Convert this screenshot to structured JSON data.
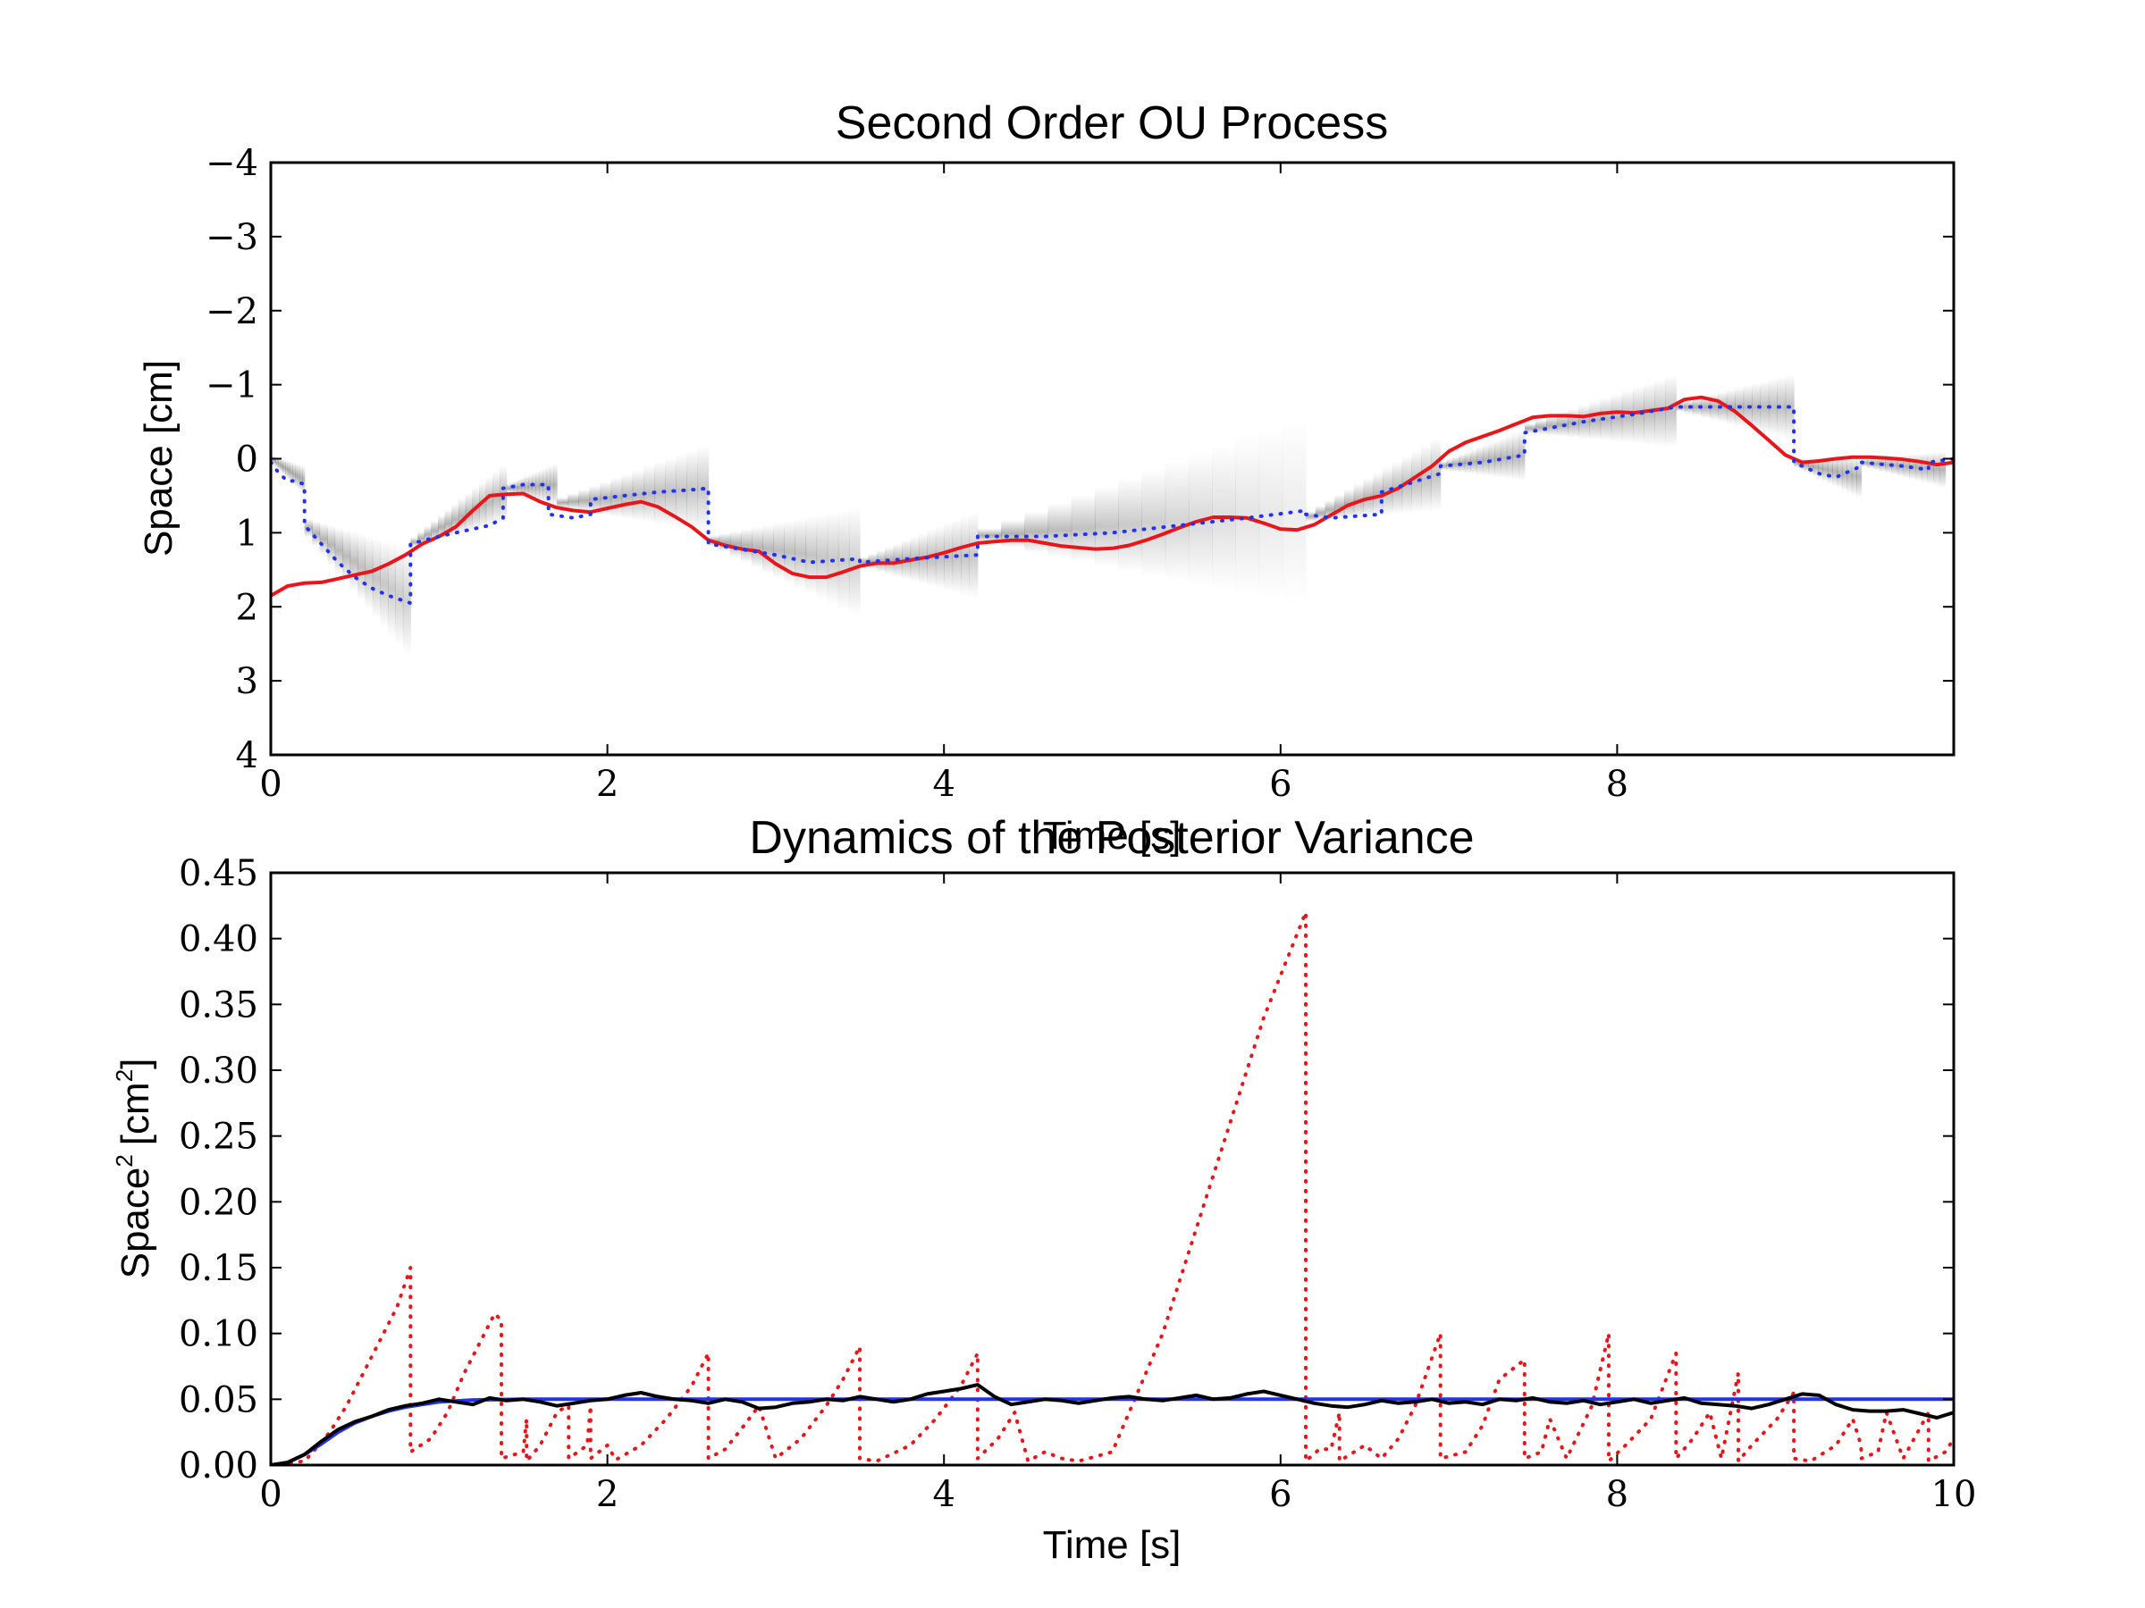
{
  "chart_data": [
    {
      "type": "line",
      "title": "Second Order OU Process",
      "xlabel": "Time [s]",
      "ylabel": "Space [cm]",
      "xlim": [
        0,
        10
      ],
      "ylim": [
        4,
        -4
      ],
      "y_axis_inverted": true,
      "xticks": [
        "0",
        "2",
        "4",
        "6",
        "8"
      ],
      "xtick_values": [
        0,
        2,
        4,
        6,
        8
      ],
      "yticks": [
        "−4",
        "−3",
        "−2",
        "−1",
        "0",
        "1",
        "2",
        "3",
        "4"
      ],
      "ytick_values": [
        -4,
        -3,
        -2,
        -1,
        0,
        1,
        2,
        3,
        4
      ],
      "grid": false,
      "legend": "none",
      "shaded_posterior": [
        {
          "x": [
            0.0,
            0.2
          ],
          "y": [
            0.0,
            0.3
          ],
          "spread": [
            0.05,
            0.2
          ]
        },
        {
          "x": [
            0.2,
            0.83
          ],
          "y": [
            0.9,
            1.95
          ],
          "spread": [
            0.1,
            0.75
          ]
        },
        {
          "x": [
            0.83,
            1.4
          ],
          "y": [
            1.15,
            0.45
          ],
          "spread": [
            0.05,
            0.4
          ]
        },
        {
          "x": [
            1.4,
            1.7
          ],
          "y": [
            0.4,
            0.35
          ],
          "spread": [
            0.05,
            0.3
          ]
        },
        {
          "x": [
            1.7,
            2.6
          ],
          "y": [
            0.6,
            0.4
          ],
          "spread": [
            0.05,
            0.6
          ]
        },
        {
          "x": [
            2.6,
            3.5
          ],
          "y": [
            1.1,
            1.4
          ],
          "spread": [
            0.05,
            0.75
          ]
        },
        {
          "x": [
            3.5,
            4.2
          ],
          "y": [
            1.4,
            1.3
          ],
          "spread": [
            0.05,
            0.6
          ]
        },
        {
          "x": [
            4.2,
            6.15
          ],
          "y": [
            1.05,
            0.7
          ],
          "spread": [
            0.05,
            1.3
          ]
        },
        {
          "x": [
            6.15,
            6.95
          ],
          "y": [
            0.8,
            0.2
          ],
          "spread": [
            0.05,
            0.5
          ]
        },
        {
          "x": [
            6.95,
            7.45
          ],
          "y": [
            0.1,
            -0.05
          ],
          "spread": [
            0.05,
            0.35
          ]
        },
        {
          "x": [
            7.45,
            8.35
          ],
          "y": [
            -0.4,
            -0.65
          ],
          "spread": [
            0.05,
            0.5
          ]
        },
        {
          "x": [
            8.35,
            9.05
          ],
          "y": [
            -0.7,
            -0.7
          ],
          "spread": [
            0.05,
            0.45
          ]
        },
        {
          "x": [
            9.05,
            9.45
          ],
          "y": [
            0.05,
            0.25
          ],
          "spread": [
            0.05,
            0.3
          ]
        },
        {
          "x": [
            9.45,
            9.95
          ],
          "y": [
            0.05,
            0.15
          ],
          "spread": [
            0.05,
            0.25
          ]
        }
      ],
      "series": [
        {
          "color": "#e8161b",
          "style": "solid",
          "x": [
            0,
            0.1,
            0.2,
            0.3,
            0.4,
            0.5,
            0.6,
            0.7,
            0.8,
            0.9,
            1.0,
            1.1,
            1.2,
            1.3,
            1.4,
            1.5,
            1.6,
            1.7,
            1.8,
            1.9,
            2.0,
            2.1,
            2.2,
            2.3,
            2.4,
            2.5,
            2.6,
            2.7,
            2.8,
            2.9,
            3.0,
            3.1,
            3.2,
            3.3,
            3.4,
            3.5,
            3.6,
            3.7,
            3.8,
            3.9,
            4.0,
            4.1,
            4.2,
            4.3,
            4.4,
            4.5,
            4.6,
            4.7,
            4.8,
            4.9,
            5.0,
            5.1,
            5.2,
            5.3,
            5.4,
            5.5,
            5.6,
            5.7,
            5.8,
            5.9,
            6.0,
            6.1,
            6.2,
            6.3,
            6.4,
            6.5,
            6.6,
            6.7,
            6.8,
            6.9,
            7.0,
            7.1,
            7.2,
            7.3,
            7.4,
            7.5,
            7.6,
            7.7,
            7.8,
            7.9,
            8.0,
            8.1,
            8.2,
            8.3,
            8.4,
            8.5,
            8.6,
            8.7,
            8.8,
            8.9,
            9.0,
            9.1,
            9.2,
            9.3,
            9.4,
            9.5,
            9.6,
            9.7,
            9.8,
            9.9,
            10.0
          ],
          "y": [
            1.85,
            1.72,
            1.68,
            1.67,
            1.62,
            1.57,
            1.52,
            1.42,
            1.3,
            1.15,
            1.05,
            0.92,
            0.7,
            0.5,
            0.48,
            0.47,
            0.58,
            0.66,
            0.7,
            0.72,
            0.67,
            0.62,
            0.58,
            0.65,
            0.78,
            0.92,
            1.1,
            1.17,
            1.22,
            1.25,
            1.42,
            1.55,
            1.6,
            1.6,
            1.53,
            1.45,
            1.41,
            1.41,
            1.37,
            1.33,
            1.27,
            1.2,
            1.14,
            1.12,
            1.1,
            1.1,
            1.14,
            1.18,
            1.2,
            1.22,
            1.21,
            1.17,
            1.1,
            1.02,
            0.93,
            0.85,
            0.79,
            0.79,
            0.8,
            0.87,
            0.95,
            0.96,
            0.89,
            0.76,
            0.63,
            0.55,
            0.5,
            0.4,
            0.25,
            0.1,
            -0.1,
            -0.22,
            -0.3,
            -0.38,
            -0.47,
            -0.56,
            -0.58,
            -0.58,
            -0.57,
            -0.61,
            -0.63,
            -0.62,
            -0.65,
            -0.68,
            -0.8,
            -0.83,
            -0.78,
            -0.64,
            -0.45,
            -0.25,
            -0.05,
            0.05,
            0.03,
            0.0,
            -0.02,
            -0.02,
            -0.01,
            0.01,
            0.04,
            0.08,
            0.05
          ]
        },
        {
          "color": "#2233ee",
          "style": "dotted",
          "x": [
            0,
            0.05,
            0.1,
            0.15,
            0.2,
            0.2,
            0.3,
            0.4,
            0.5,
            0.6,
            0.7,
            0.83,
            0.83,
            1.0,
            1.2,
            1.3,
            1.38,
            1.38,
            1.5,
            1.65,
            1.65,
            1.8,
            1.9,
            1.9,
            2.1,
            2.3,
            2.5,
            2.6,
            2.6,
            3.0,
            3.2,
            3.5,
            3.5,
            3.8,
            4.2,
            4.2,
            4.6,
            5.0,
            5.4,
            5.8,
            6.15,
            6.15,
            6.3,
            6.6,
            6.6,
            6.95,
            6.95,
            7.2,
            7.45,
            7.45,
            7.8,
            8.1,
            8.35,
            8.35,
            8.7,
            9.05,
            9.05,
            9.2,
            9.3,
            9.45,
            9.45,
            9.7,
            9.85,
            9.85,
            10.0
          ],
          "y": [
            0.05,
            0.2,
            0.3,
            0.3,
            0.35,
            0.9,
            1.15,
            1.4,
            1.6,
            1.75,
            1.85,
            1.95,
            1.15,
            1.05,
            0.95,
            0.9,
            0.8,
            0.4,
            0.35,
            0.35,
            0.75,
            0.8,
            0.75,
            0.55,
            0.5,
            0.45,
            0.42,
            0.4,
            1.15,
            1.3,
            1.4,
            1.35,
            1.4,
            1.35,
            1.3,
            1.05,
            1.05,
            1.0,
            0.9,
            0.8,
            0.7,
            0.75,
            0.8,
            0.75,
            0.45,
            0.2,
            0.1,
            0.05,
            -0.05,
            -0.35,
            -0.5,
            -0.6,
            -0.7,
            -0.7,
            -0.7,
            -0.7,
            0.05,
            0.2,
            0.25,
            0.1,
            0.05,
            0.1,
            0.15,
            0.05,
            0.0
          ]
        }
      ]
    },
    {
      "type": "line",
      "title": "Dynamics of the Posterior Variance",
      "xlabel": "Time [s]",
      "ylabel": "Space² [cm²]",
      "ylabel_base": "Space",
      "ylabel_unit": "[cm",
      "ylabel_unit_close": "]",
      "ylabel_sup": "2",
      "xlim": [
        0,
        10
      ],
      "ylim": [
        0,
        0.45
      ],
      "xticks": [
        "0",
        "2",
        "4",
        "6",
        "8",
        "10"
      ],
      "xtick_values": [
        0,
        2,
        4,
        6,
        8,
        10
      ],
      "yticks": [
        "0.00",
        "0.05",
        "0.10",
        "0.15",
        "0.20",
        "0.25",
        "0.30",
        "0.35",
        "0.40",
        "0.45"
      ],
      "ytick_values": [
        0.0,
        0.05,
        0.1,
        0.15,
        0.2,
        0.25,
        0.3,
        0.35,
        0.4,
        0.45
      ],
      "grid": false,
      "legend": "none",
      "series": [
        {
          "color": "#e8161b",
          "style": "dotted",
          "x": [
            0.0,
            0.2,
            0.25,
            0.35,
            0.45,
            0.55,
            0.65,
            0.75,
            0.83,
            0.83,
            0.95,
            1.05,
            1.15,
            1.25,
            1.33,
            1.37,
            1.37,
            1.5,
            1.52,
            1.52,
            1.6,
            1.7,
            1.76,
            1.77,
            1.77,
            1.88,
            1.9,
            1.9,
            2.0,
            2.05,
            2.2,
            2.35,
            2.5,
            2.6,
            2.6,
            2.7,
            2.8,
            2.9,
            3.0,
            3.15,
            3.3,
            3.4,
            3.5,
            3.5,
            3.6,
            3.8,
            3.95,
            4.1,
            4.2,
            4.2,
            4.32,
            4.42,
            4.5,
            4.6,
            4.7,
            4.8,
            5.0,
            5.3,
            5.6,
            5.9,
            6.15,
            6.15,
            6.23,
            6.3,
            6.35,
            6.35,
            6.5,
            6.6,
            6.7,
            6.8,
            6.95,
            6.95,
            7.1,
            7.2,
            7.3,
            7.45,
            7.45,
            7.55,
            7.6,
            7.7,
            7.85,
            7.95,
            7.95,
            8.05,
            8.2,
            8.35,
            8.35,
            8.45,
            8.55,
            8.62,
            8.72,
            8.72,
            8.8,
            8.95,
            9.05,
            9.05,
            9.15,
            9.3,
            9.4,
            9.45,
            9.45,
            9.55,
            9.6,
            9.7,
            9.85,
            9.85,
            9.95,
            10.0
          ],
          "y": [
            0.0,
            0.003,
            0.01,
            0.025,
            0.045,
            0.07,
            0.095,
            0.12,
            0.15,
            0.01,
            0.02,
            0.04,
            0.07,
            0.095,
            0.115,
            0.11,
            0.005,
            0.01,
            0.035,
            0.003,
            0.015,
            0.04,
            0.045,
            0.045,
            0.005,
            0.015,
            0.045,
            0.005,
            0.015,
            0.004,
            0.015,
            0.035,
            0.06,
            0.085,
            0.005,
            0.012,
            0.028,
            0.045,
            0.005,
            0.02,
            0.045,
            0.065,
            0.09,
            0.005,
            0.003,
            0.015,
            0.035,
            0.06,
            0.085,
            0.005,
            0.02,
            0.04,
            0.003,
            0.01,
            0.005,
            0.003,
            0.01,
            0.1,
            0.22,
            0.34,
            0.42,
            0.003,
            0.012,
            0.012,
            0.04,
            0.003,
            0.015,
            0.005,
            0.02,
            0.045,
            0.1,
            0.005,
            0.01,
            0.03,
            0.065,
            0.08,
            0.005,
            0.01,
            0.035,
            0.005,
            0.045,
            0.1,
            0.003,
            0.015,
            0.035,
            0.085,
            0.005,
            0.02,
            0.04,
            0.005,
            0.07,
            0.003,
            0.015,
            0.035,
            0.055,
            0.005,
            0.003,
            0.015,
            0.035,
            0.015,
            0.005,
            0.01,
            0.04,
            0.005,
            0.04,
            0.003,
            0.01,
            0.02
          ]
        },
        {
          "color": "#2233ee",
          "style": "solid",
          "x": [
            0.0,
            0.1,
            0.2,
            0.3,
            0.4,
            0.5,
            0.6,
            0.7,
            0.8,
            0.9,
            1.0,
            1.2,
            1.5,
            2.0,
            10.0
          ],
          "y": [
            0.0,
            0.002,
            0.008,
            0.016,
            0.025,
            0.032,
            0.037,
            0.041,
            0.044,
            0.046,
            0.048,
            0.0495,
            0.05,
            0.05,
            0.05
          ]
        },
        {
          "color": "#000000",
          "style": "solid",
          "x": [
            0.0,
            0.1,
            0.2,
            0.3,
            0.4,
            0.5,
            0.6,
            0.7,
            0.8,
            0.9,
            1.0,
            1.1,
            1.2,
            1.3,
            1.4,
            1.5,
            1.6,
            1.7,
            1.8,
            1.9,
            2.0,
            2.1,
            2.2,
            2.3,
            2.4,
            2.5,
            2.6,
            2.7,
            2.8,
            2.9,
            3.0,
            3.1,
            3.2,
            3.3,
            3.4,
            3.5,
            3.6,
            3.7,
            3.8,
            3.9,
            4.0,
            4.1,
            4.2,
            4.3,
            4.4,
            4.5,
            4.6,
            4.7,
            4.8,
            4.9,
            5.0,
            5.1,
            5.2,
            5.3,
            5.4,
            5.5,
            5.6,
            5.7,
            5.8,
            5.9,
            6.0,
            6.1,
            6.2,
            6.3,
            6.4,
            6.5,
            6.6,
            6.7,
            6.8,
            6.9,
            7.0,
            7.1,
            7.2,
            7.3,
            7.4,
            7.5,
            7.6,
            7.7,
            7.8,
            7.9,
            8.0,
            8.1,
            8.2,
            8.3,
            8.4,
            8.5,
            8.6,
            8.7,
            8.8,
            8.9,
            9.0,
            9.1,
            9.2,
            9.3,
            9.4,
            9.5,
            9.6,
            9.7,
            9.8,
            9.9,
            10.0
          ],
          "y": [
            0.0,
            0.002,
            0.008,
            0.018,
            0.027,
            0.033,
            0.037,
            0.042,
            0.045,
            0.047,
            0.05,
            0.048,
            0.046,
            0.051,
            0.049,
            0.05,
            0.048,
            0.045,
            0.047,
            0.049,
            0.05,
            0.053,
            0.055,
            0.052,
            0.05,
            0.049,
            0.047,
            0.05,
            0.048,
            0.043,
            0.044,
            0.047,
            0.048,
            0.05,
            0.049,
            0.052,
            0.05,
            0.048,
            0.05,
            0.054,
            0.056,
            0.058,
            0.061,
            0.052,
            0.046,
            0.048,
            0.05,
            0.049,
            0.047,
            0.049,
            0.051,
            0.052,
            0.05,
            0.049,
            0.051,
            0.053,
            0.05,
            0.051,
            0.054,
            0.056,
            0.053,
            0.05,
            0.047,
            0.045,
            0.044,
            0.046,
            0.049,
            0.047,
            0.048,
            0.05,
            0.047,
            0.048,
            0.046,
            0.05,
            0.049,
            0.051,
            0.048,
            0.047,
            0.049,
            0.046,
            0.048,
            0.05,
            0.047,
            0.049,
            0.051,
            0.047,
            0.046,
            0.045,
            0.043,
            0.046,
            0.05,
            0.054,
            0.053,
            0.046,
            0.042,
            0.041,
            0.041,
            0.042,
            0.039,
            0.036,
            0.04
          ]
        }
      ]
    }
  ]
}
